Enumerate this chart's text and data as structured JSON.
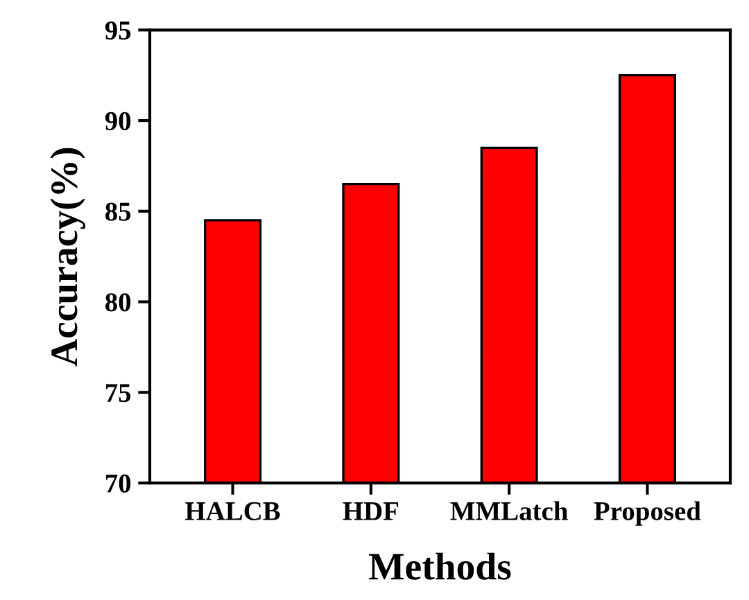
{
  "chart_data": {
    "type": "bar",
    "xlabel": "Methods",
    "ylabel": "Accuracy(%)",
    "categories": [
      "HALCB",
      "HDF",
      "MMLatch",
      "Proposed"
    ],
    "values": [
      84.5,
      86.5,
      88.5,
      92.5
    ],
    "color": "#ff0000",
    "ylim": [
      70,
      95
    ],
    "yticks": [
      70,
      75,
      80,
      85,
      90,
      95
    ],
    "grid": false,
    "legend": false
  }
}
